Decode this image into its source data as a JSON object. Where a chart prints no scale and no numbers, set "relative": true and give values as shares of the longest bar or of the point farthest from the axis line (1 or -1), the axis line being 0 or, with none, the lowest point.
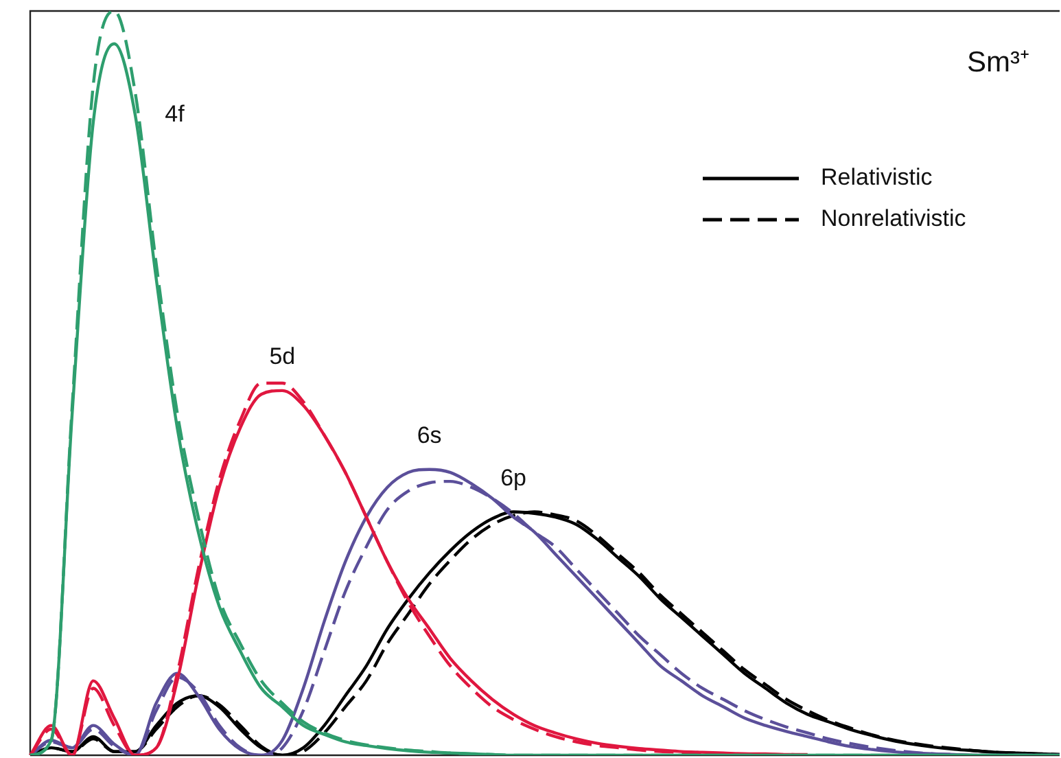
{
  "chart_data": {
    "type": "line",
    "relative": true,
    "title": "Sm³⁺",
    "legend": "top right",
    "marker": "none",
    "grid": false,
    "categories": [
      null,
      null,
      null,
      null,
      null,
      null,
      null,
      null,
      null,
      null,
      null,
      null,
      null,
      null,
      null,
      null,
      null,
      null,
      null,
      null,
      null,
      null,
      null,
      null,
      null,
      null,
      null,
      null,
      null,
      null,
      null,
      null,
      null,
      null,
      null,
      null,
      null,
      null,
      null,
      null,
      null,
      null,
      null,
      null,
      null,
      null,
      null,
      null,
      null,
      null
    ],
    "annotations": [
      "4f",
      "5d",
      "6s",
      "6p"
    ],
    "series": [
      {
        "color": "#2e9e6e",
        "line_style": "solid",
        "values": [
          0,
          0.02,
          0.46,
          0.85,
          0.956,
          0.86,
          0.64,
          0.44,
          0.3,
          0.2,
          0.14,
          0.09,
          0.065,
          0.04,
          0.028,
          0.018,
          0.013,
          0.009,
          0.006,
          0.004,
          0.003,
          0.002,
          0.001,
          0,
          0,
          0,
          0,
          0,
          0,
          0,
          0,
          0,
          0,
          0,
          0,
          0,
          0,
          0,
          0,
          0,
          0,
          0,
          0,
          0,
          0,
          0,
          0,
          0,
          0,
          0
        ]
      },
      {
        "color": "#2e9e6e",
        "line_style": "dashed",
        "values": [
          0,
          0.02,
          0.47,
          0.9,
          1,
          0.89,
          0.66,
          0.46,
          0.32,
          0.21,
          0.15,
          0.1,
          0.07,
          0.045,
          0.03,
          0.02,
          0.014,
          0.01,
          0.007,
          0.005,
          0.003,
          0.002,
          0.001,
          0,
          0,
          0,
          0,
          0,
          0,
          0,
          0,
          0,
          0,
          0,
          0,
          0,
          0,
          0,
          0,
          0,
          0,
          0,
          0,
          0,
          0,
          0,
          0,
          0,
          0,
          0
        ]
      },
      {
        "color": "#e0173f",
        "line_style": "solid",
        "values": [
          0,
          0.04,
          0,
          0.1,
          0.05,
          0,
          0.01,
          0.1,
          0.24,
          0.36,
          0.44,
          0.485,
          0.49,
          0.47,
          0.43,
          0.38,
          0.32,
          0.26,
          0.21,
          0.17,
          0.13,
          0.1,
          0.075,
          0.055,
          0.04,
          0.03,
          0.022,
          0.016,
          0.012,
          0.009,
          0.007,
          0.005,
          0.004,
          0.003,
          0.002,
          0.002,
          0.001,
          0.001,
          null,
          null,
          null,
          null,
          null,
          null,
          null,
          null,
          null,
          null,
          null,
          null
        ]
      },
      {
        "color": "#e0173f",
        "line_style": "dashed",
        "values": [
          0,
          0.035,
          0,
          0.09,
          0.04,
          0,
          0.01,
          0.11,
          0.25,
          0.37,
          0.45,
          0.5,
          0.5,
          0.475,
          0.43,
          0.38,
          0.32,
          0.26,
          0.205,
          0.16,
          0.12,
          0.09,
          0.065,
          0.048,
          0.035,
          0.025,
          0.018,
          0.013,
          0.01,
          0.007,
          0.005,
          0.004,
          0.003,
          0.002,
          0.002,
          0.001,
          0.001,
          0,
          null,
          null,
          null,
          null,
          null,
          null,
          null,
          null,
          null,
          null,
          null,
          null
        ]
      },
      {
        "color": "#5b4f9a",
        "line_style": "solid",
        "values": [
          0,
          0.02,
          0.01,
          0.04,
          0.015,
          0,
          0.07,
          0.11,
          0.08,
          0.035,
          0.008,
          0,
          0.02,
          0.09,
          0.18,
          0.26,
          0.32,
          0.36,
          0.38,
          0.384,
          0.38,
          0.365,
          0.345,
          0.32,
          0.3,
          0.27,
          0.24,
          0.21,
          0.18,
          0.15,
          0.12,
          0.1,
          0.08,
          0.065,
          0.05,
          0.04,
          0.032,
          0.025,
          0.018,
          0.012,
          0.008,
          0.005,
          0.003,
          0.002,
          0.001,
          0,
          0,
          0,
          0,
          0
        ]
      },
      {
        "color": "#5b4f9a",
        "line_style": "dashed",
        "values": [
          0,
          0.018,
          0.01,
          0.035,
          0.012,
          0,
          0.06,
          0.105,
          0.085,
          0.04,
          0.01,
          0,
          0.01,
          0.06,
          0.14,
          0.22,
          0.28,
          0.33,
          0.355,
          0.366,
          0.368,
          0.36,
          0.345,
          0.325,
          0.3,
          0.28,
          0.25,
          0.22,
          0.19,
          0.16,
          0.135,
          0.11,
          0.09,
          0.075,
          0.06,
          0.048,
          0.038,
          0.03,
          0.022,
          0.016,
          0.011,
          0.007,
          0.004,
          0.002,
          0.001,
          0,
          0,
          0,
          0,
          0
        ]
      },
      {
        "name": "Relativistic",
        "color": "#000000",
        "line_style": "solid",
        "values": [
          0,
          0.01,
          0.005,
          0.025,
          0.005,
          0.005,
          0.04,
          0.07,
          0.08,
          0.065,
          0.035,
          0.01,
          0,
          0.01,
          0.04,
          0.08,
          0.12,
          0.17,
          0.21,
          0.245,
          0.275,
          0.3,
          0.318,
          0.327,
          0.325,
          0.32,
          0.31,
          0.29,
          0.265,
          0.24,
          0.21,
          0.185,
          0.16,
          0.135,
          0.11,
          0.09,
          0.07,
          0.055,
          0.045,
          0.035,
          0.027,
          0.02,
          0.015,
          0.011,
          0.008,
          0.006,
          0.004,
          0.003,
          0.002,
          0.001
        ]
      },
      {
        "name": "Nonrelativistic",
        "color": "#000000",
        "line_style": "dashed",
        "values": [
          0,
          0.01,
          0.005,
          0.022,
          0.005,
          0.005,
          0.035,
          0.065,
          0.08,
          0.068,
          0.04,
          0.012,
          0,
          0.005,
          0.03,
          0.065,
          0.1,
          0.15,
          0.19,
          0.23,
          0.262,
          0.29,
          0.31,
          0.322,
          0.327,
          0.323,
          0.315,
          0.295,
          0.27,
          0.245,
          0.215,
          0.19,
          0.165,
          0.14,
          0.115,
          0.095,
          0.075,
          0.06,
          0.047,
          0.037,
          0.028,
          0.021,
          0.016,
          0.012,
          0.009,
          0.006,
          0.004,
          0.003,
          0.002,
          0.001
        ]
      }
    ]
  }
}
